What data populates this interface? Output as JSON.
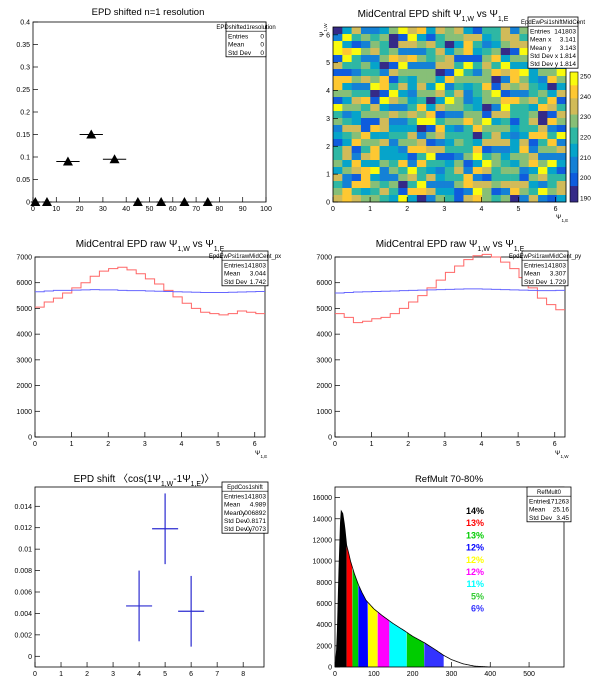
{
  "panels": [
    {
      "id": "p1",
      "title": "EPD shifted n=1 resolution",
      "stats_title": "EPDshifted1resolution",
      "stats": [
        [
          "Entries",
          "0"
        ],
        [
          "Mean",
          "0"
        ],
        [
          "Std Dev",
          "0"
        ]
      ],
      "xticks": [
        "0",
        "10",
        "20",
        "30",
        "40",
        "50",
        "60",
        "70",
        "80",
        "90",
        "100"
      ],
      "yticks": [
        "0",
        "0.05",
        "0.1",
        "0.15",
        "0.2",
        "0.25",
        "0.3",
        "0.35",
        "0.4"
      ]
    },
    {
      "id": "p2",
      "title": "MidCentral EPD shift Ψ_{1,W} vs Ψ_{1,E}",
      "stats_title": "EpdEwPsi1shiftMidCent",
      "stats": [
        [
          "Entries",
          "141803"
        ],
        [
          "Mean x",
          "3.141"
        ],
        [
          "Mean y",
          "3.143"
        ],
        [
          "Std Dev x",
          "1.814"
        ],
        [
          "Std Dev y",
          "1.814"
        ]
      ],
      "xticks": [
        "0",
        "1",
        "2",
        "3",
        "4",
        "5",
        "6"
      ],
      "yticks": [
        "0",
        "1",
        "2",
        "3",
        "4",
        "5",
        "6"
      ],
      "xlabel": "Ψ_{1,E}",
      "ylabel": "Ψ_{1,W}",
      "zticks": [
        "190",
        "200",
        "210",
        "220",
        "230",
        "240",
        "250"
      ]
    },
    {
      "id": "p3",
      "title": "MidCentral EPD raw Ψ_{1,W} vs Ψ_{1,E}",
      "stats_title": "EpdEwPsi1rawMidCent_px",
      "stats": [
        [
          "Entries",
          "141803"
        ],
        [
          "Mean",
          "3.044"
        ],
        [
          "Std Dev",
          "1.742"
        ]
      ],
      "xticks": [
        "0",
        "1",
        "2",
        "3",
        "4",
        "5",
        "6"
      ],
      "yticks": [
        "0",
        "1000",
        "2000",
        "3000",
        "4000",
        "5000",
        "6000",
        "7000"
      ],
      "xlabel": "Ψ_{1,E}"
    },
    {
      "id": "p4",
      "title": "MidCentral EPD raw Ψ_{1,W} vs Ψ_{1,E}",
      "stats_title": "EpdEwPsi1rawMidCent_py",
      "stats": [
        [
          "Entries",
          "141803"
        ],
        [
          "Mean",
          "3.307"
        ],
        [
          "Std Dev",
          "1.729"
        ]
      ],
      "xticks": [
        "0",
        "1",
        "2",
        "3",
        "4",
        "5",
        "6"
      ],
      "yticks": [
        "0",
        "1000",
        "2000",
        "3000",
        "4000",
        "5000",
        "6000",
        "7000"
      ],
      "xlabel": "Ψ_{1,W}"
    },
    {
      "id": "p5",
      "title": "EPD shift 〈cos(1Ψ_{1,W}-1Ψ_{1,E})〉",
      "stats_title": "EpdCos1shift",
      "stats": [
        [
          "Entries",
          "141803"
        ],
        [
          "Mean",
          "4.989"
        ],
        [
          "Mean y",
          "0.006892"
        ],
        [
          "Std Dev",
          "0.8171"
        ],
        [
          "Std Dev y",
          "0.7073"
        ]
      ],
      "xticks": [
        "0",
        "1",
        "2",
        "3",
        "4",
        "5",
        "6",
        "7",
        "8"
      ],
      "yticks": [
        "0",
        "0.002",
        "0.004",
        "0.006",
        "0.008",
        "0.01",
        "0.012",
        "0.014"
      ]
    },
    {
      "id": "p6",
      "title": "RefMult 70-80%",
      "stats_title": "RefMult0",
      "stats": [
        [
          "Entries",
          "171263"
        ],
        [
          "Mean",
          "25.16"
        ],
        [
          "Std Dev",
          "3.45"
        ]
      ],
      "xticks": [
        "0",
        "100",
        "200",
        "300",
        "400",
        "500"
      ],
      "yticks": [
        "0",
        "2000",
        "4000",
        "6000",
        "8000",
        "10000",
        "12000",
        "14000",
        "16000"
      ],
      "legend": [
        {
          "label": "14%",
          "color": "#000000"
        },
        {
          "label": "13%",
          "color": "#ff0000"
        },
        {
          "label": "13%",
          "color": "#00cc00"
        },
        {
          "label": "12%",
          "color": "#0000ff"
        },
        {
          "label": "12%",
          "color": "#ffff00"
        },
        {
          "label": "12%",
          "color": "#ff00ff"
        },
        {
          "label": "11%",
          "color": "#00ffff"
        },
        {
          "label": "5%",
          "color": "#33cc33"
        },
        {
          "label": "6%",
          "color": "#3333ff"
        }
      ]
    }
  ],
  "chart_data": [
    {
      "type": "scatter",
      "title": "EPD shifted n=1 resolution",
      "xlim": [
        0,
        100
      ],
      "ylim": [
        0,
        0.4
      ],
      "points": [
        {
          "x": 1,
          "y": 0,
          "xerr": 2
        },
        {
          "x": 6,
          "y": 0,
          "xerr": 2
        },
        {
          "x": 15,
          "y": 0.09,
          "xerr": 5
        },
        {
          "x": 25,
          "y": 0.15,
          "xerr": 5
        },
        {
          "x": 35,
          "y": 0.095,
          "xerr": 5
        },
        {
          "x": 45,
          "y": 0,
          "xerr": 2
        },
        {
          "x": 55,
          "y": 0,
          "xerr": 2
        },
        {
          "x": 65,
          "y": 0,
          "xerr": 2
        },
        {
          "x": 75,
          "y": 0,
          "xerr": 2
        }
      ]
    },
    {
      "type": "heatmap",
      "title": "MidCentral EPD shift Ψ_{1,W} vs Ψ_{1,E}",
      "xlim": [
        0,
        6.28
      ],
      "ylim": [
        0,
        6.28
      ],
      "zlim": [
        188,
        252
      ],
      "nx": 25,
      "ny": 25,
      "row_values": [
        195,
        225,
        240,
        210,
        232,
        218,
        245,
        205,
        228,
        214,
        236,
        222,
        208,
        230,
        241,
        216,
        226,
        211,
        234,
        220,
        207,
        238,
        224,
        213,
        229
      ]
    },
    {
      "type": "line",
      "title": "MidCentral EPD raw Ψ_{1,W} vs Ψ_{1,E}",
      "xlim": [
        0,
        6.28
      ],
      "ylim": [
        0,
        7000
      ],
      "series": [
        {
          "color": "#ff6666",
          "values": [
            5050,
            5250,
            5400,
            5600,
            5800,
            6000,
            6250,
            6450,
            6550,
            6600,
            6500,
            6350,
            6150,
            5950,
            5700,
            5450,
            5200,
            5000,
            4850,
            4800,
            4750,
            4800,
            4900,
            4850,
            4800
          ]
        },
        {
          "color": "#6666ff",
          "values": [
            5650,
            5680,
            5700,
            5700,
            5710,
            5720,
            5730,
            5720,
            5720,
            5700,
            5690,
            5690,
            5680,
            5670,
            5660,
            5650,
            5640,
            5630,
            5620,
            5620,
            5620,
            5630,
            5640,
            5650,
            5660
          ]
        }
      ]
    },
    {
      "type": "line",
      "title": "MidCentral EPD raw Ψ_{1,W} vs Ψ_{1,E}",
      "xlim": [
        0,
        6.28
      ],
      "ylim": [
        0,
        7000
      ],
      "series": [
        {
          "color": "#ff6666",
          "values": [
            4800,
            4650,
            4450,
            4500,
            4600,
            4650,
            4800,
            5000,
            5250,
            5500,
            5800,
            6100,
            6400,
            6650,
            6900,
            7050,
            7100,
            7000,
            6800,
            6550,
            6200,
            5800,
            5400,
            5150,
            4950
          ]
        },
        {
          "color": "#6666ff",
          "values": [
            5600,
            5620,
            5640,
            5650,
            5660,
            5670,
            5680,
            5690,
            5700,
            5710,
            5720,
            5730,
            5740,
            5750,
            5760,
            5760,
            5750,
            5740,
            5730,
            5720,
            5710,
            5700,
            5690,
            5690,
            5700
          ]
        }
      ]
    },
    {
      "type": "scatter",
      "title": "EPD shift 〈cos(1Ψ_{1,W}-1Ψ_{1,E})〉",
      "xlim": [
        0,
        8.8
      ],
      "ylim": [
        -0.001,
        0.0158
      ],
      "points": [
        {
          "x": 4,
          "y": 0.0047,
          "xerr": 0.5,
          "yerr": 0.0033
        },
        {
          "x": 5,
          "y": 0.0119,
          "xerr": 0.5,
          "yerr": 0.0033
        },
        {
          "x": 6,
          "y": 0.0042,
          "xerr": 0.5,
          "yerr": 0.0033
        }
      ]
    },
    {
      "type": "area",
      "title": "RefMult 70-80%",
      "xlim": [
        0,
        590
      ],
      "ylim": [
        0,
        17000
      ],
      "curve": [
        [
          0,
          0
        ],
        [
          5,
          2000
        ],
        [
          10,
          9000
        ],
        [
          15,
          14800
        ],
        [
          20,
          14500
        ],
        [
          25,
          13300
        ],
        [
          30,
          11500
        ],
        [
          35,
          10800
        ],
        [
          40,
          10000
        ],
        [
          50,
          8800
        ],
        [
          60,
          7800
        ],
        [
          70,
          7000
        ],
        [
          80,
          6300
        ],
        [
          100,
          5500
        ],
        [
          120,
          4900
        ],
        [
          150,
          4100
        ],
        [
          180,
          3400
        ],
        [
          200,
          2900
        ],
        [
          230,
          2300
        ],
        [
          260,
          1600
        ],
        [
          280,
          1100
        ],
        [
          300,
          700
        ],
        [
          330,
          300
        ],
        [
          360,
          80
        ],
        [
          400,
          0
        ]
      ],
      "segments": [
        {
          "from": 0,
          "to": 30,
          "color": "#000000"
        },
        {
          "from": 30,
          "to": 45,
          "color": "#ff0000"
        },
        {
          "from": 45,
          "to": 60,
          "color": "#00cc00"
        },
        {
          "from": 60,
          "to": 85,
          "color": "#0000ff"
        },
        {
          "from": 85,
          "to": 110,
          "color": "#ffff00"
        },
        {
          "from": 110,
          "to": 140,
          "color": "#ff00ff"
        },
        {
          "from": 140,
          "to": 185,
          "color": "#00ffff"
        },
        {
          "from": 185,
          "to": 230,
          "color": "#00cc00"
        },
        {
          "from": 230,
          "to": 280,
          "color": "#3333ff"
        }
      ]
    }
  ]
}
